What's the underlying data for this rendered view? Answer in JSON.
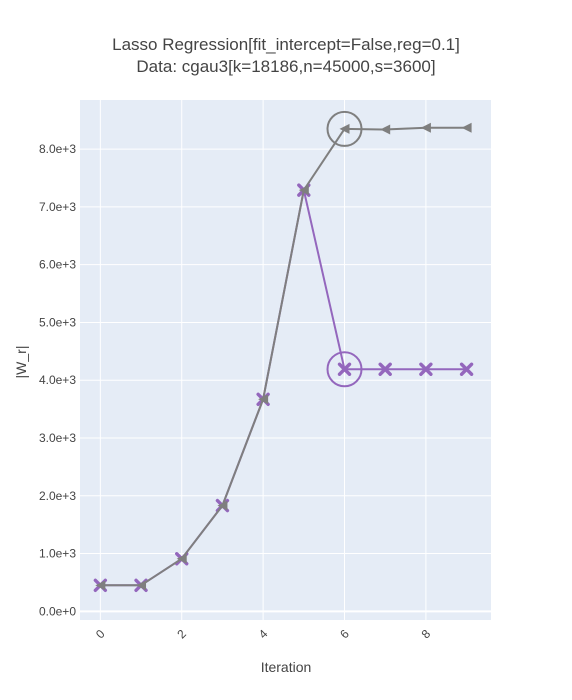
{
  "chart_data": {
    "type": "line",
    "title": "Lasso Regression[fit_intercept=False,reg=0.1]",
    "subtitle": "Data: cgau3[k=18186,n=45000,s=3600]",
    "xlabel": "Iteration",
    "ylabel": "|W_r|",
    "xlim": [
      -0.5,
      9.6
    ],
    "ylim": [
      -150,
      8850
    ],
    "xticks": [
      0,
      2,
      4,
      6,
      8
    ],
    "xtick_labels": [
      "0",
      "2",
      "4",
      "6",
      "8"
    ],
    "yticks": [
      0,
      1000,
      2000,
      3000,
      4000,
      5000,
      6000,
      7000,
      8000
    ],
    "ytick_labels": [
      "0.0e+0",
      "1.0e+3",
      "2.0e+3",
      "3.0e+3",
      "4.0e+3",
      "5.0e+3",
      "6.0e+3",
      "7.0e+3",
      "8.0e+3"
    ],
    "grid": true,
    "series": [
      {
        "marker": "x",
        "color": "#9467bd",
        "x": [
          0,
          1,
          2,
          3,
          4,
          5,
          6,
          7,
          8,
          9
        ],
        "y": [
          450,
          450,
          910,
          1830,
          3670,
          7290,
          4190,
          4190,
          4190,
          4190
        ],
        "highlight_x": 6
      },
      {
        "marker": "triangle-left",
        "color": "#7f7f7f",
        "x": [
          0,
          1,
          2,
          3,
          4,
          5,
          6,
          7,
          8,
          9
        ],
        "y": [
          450,
          450,
          910,
          1830,
          3670,
          7290,
          8350,
          8340,
          8370,
          8370
        ],
        "highlight_x": 6
      }
    ]
  }
}
